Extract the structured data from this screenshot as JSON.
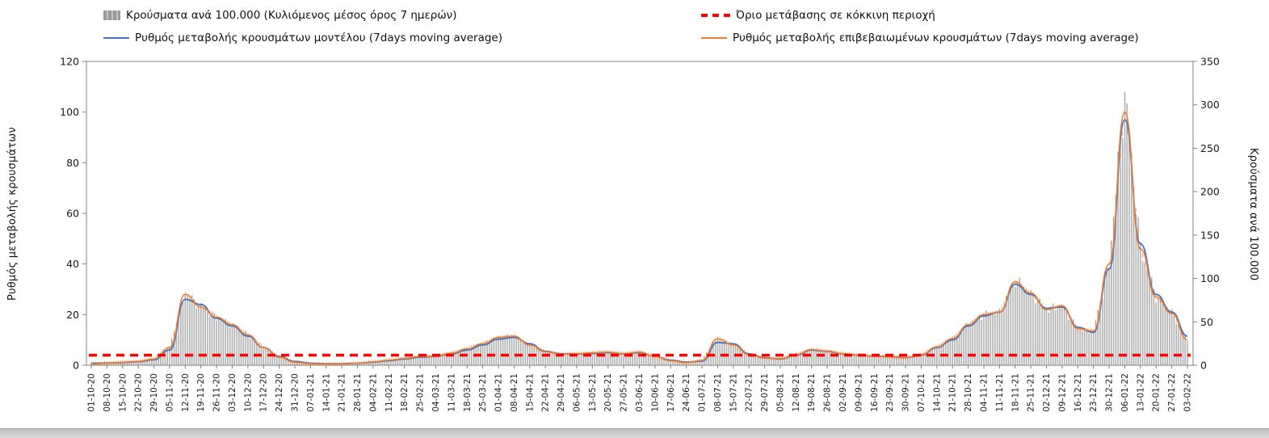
{
  "legend": {
    "items": [
      {
        "label": "Κρούσματα ανά 100.000 (Κυλιόμενος μέσος όρος 7 ημερών)",
        "swatch": "gray-bars"
      },
      {
        "label": "Όριο μετάβασης σε κόκκινη περιοχή",
        "swatch": "red-dashed-line"
      },
      {
        "label": "Ρυθμός μεταβολής κρουσμάτων μοντέλου (7days moving average)",
        "swatch": "blue-line"
      },
      {
        "label": "Ρυθμός μεταβολής επιβεβαιωμένων κρουσμάτων (7days moving average)",
        "swatch": "orange-line"
      }
    ]
  },
  "chart_data": {
    "type": "bar+line",
    "title": "",
    "grid": false,
    "legend_position": "top",
    "x": [
      "01-10-20",
      "08-10-20",
      "15-10-20",
      "22-10-20",
      "29-10-20",
      "05-11-20",
      "12-11-20",
      "19-11-20",
      "26-11-20",
      "03-12-20",
      "10-12-20",
      "17-12-20",
      "24-12-20",
      "31-12-20",
      "07-01-21",
      "14-01-21",
      "21-01-21",
      "28-01-21",
      "04-02-21",
      "11-02-21",
      "18-02-21",
      "25-02-21",
      "04-03-21",
      "11-03-21",
      "18-03-21",
      "25-03-21",
      "01-04-21",
      "08-04-21",
      "15-04-21",
      "22-04-21",
      "29-04-21",
      "06-05-21",
      "13-05-21",
      "20-05-21",
      "27-05-21",
      "03-06-21",
      "10-06-21",
      "17-06-21",
      "24-06-21",
      "01-07-21",
      "08-07-21",
      "15-07-21",
      "22-07-21",
      "29-07-21",
      "05-08-21",
      "12-08-21",
      "19-08-21",
      "26-08-21",
      "02-09-21",
      "09-09-21",
      "16-09-21",
      "23-09-21",
      "30-09-21",
      "07-10-21",
      "14-10-21",
      "21-10-21",
      "28-10-21",
      "04-11-21",
      "11-11-21",
      "18-11-21",
      "25-11-21",
      "02-12-21",
      "09-12-21",
      "16-12-21",
      "23-12-21",
      "30-12-21",
      "06-01-22",
      "13-01-22",
      "20-01-22",
      "27-01-22",
      "03-02-22"
    ],
    "series": [
      {
        "name": "Κρούσματα ανά 100.000 (Κυλιόμενος μέσος όρος 7 ημερών)",
        "type": "bar",
        "axis": "right",
        "color": "#b0b0b0",
        "values": [
          2,
          2,
          4,
          5,
          7,
          20,
          82,
          68,
          55,
          47,
          35,
          20,
          9,
          4,
          2,
          2,
          2,
          2,
          4,
          6,
          8,
          10,
          11,
          14,
          19,
          25,
          32,
          34,
          23,
          16,
          13,
          13,
          14,
          15,
          13,
          15,
          10,
          5,
          3,
          6,
          31,
          23,
          12,
          8,
          8,
          12,
          18,
          16,
          13,
          12,
          11,
          10,
          9,
          12,
          21,
          31,
          47,
          58,
          61,
          97,
          83,
          64,
          69,
          42,
          39,
          117,
          315,
          135,
          79,
          60,
          29
        ]
      },
      {
        "name": "Όριο μετάβασης σε κόκκινη περιοχή",
        "type": "threshold",
        "axis": "left",
        "color": "#ff0000",
        "value": 4
      },
      {
        "name": "Ρυθμός μεταβολής κρουσμάτων μοντέλου (7days moving average)",
        "type": "line",
        "axis": "left",
        "color": "#4472c4",
        "values": [
          0.8,
          0.9,
          1.1,
          1.4,
          2.2,
          6,
          26,
          24,
          18.5,
          15.5,
          11.5,
          7,
          3.5,
          1.5,
          0.8,
          0.6,
          0.6,
          0.8,
          1.2,
          1.8,
          2.5,
          3.2,
          3.5,
          4.5,
          6,
          8,
          10.3,
          11,
          8.5,
          5.5,
          4.5,
          4.5,
          4.7,
          5,
          4.5,
          5,
          3.5,
          2,
          1.2,
          1.6,
          9,
          8.5,
          4.5,
          3,
          2.5,
          4,
          6,
          5.5,
          4.5,
          4,
          3.6,
          3.4,
          3,
          4,
          7,
          10,
          15.5,
          19.5,
          21,
          32,
          28,
          22.5,
          23,
          15,
          13,
          38,
          97,
          48,
          28,
          21,
          11.5
        ]
      },
      {
        "name": "Ρυθμός μεταβολής επιβεβαιωμένων κρουσμάτων (7days moving average)",
        "type": "line",
        "axis": "left",
        "color": "#ed7d31",
        "values": [
          0.5,
          0.8,
          1.2,
          1.5,
          2.5,
          7,
          28,
          23,
          19,
          16,
          12,
          7,
          3.2,
          1.2,
          0.6,
          0.5,
          0.5,
          0.8,
          1.3,
          2,
          2.7,
          3.4,
          3.6,
          4.8,
          6.5,
          8.5,
          11,
          11.5,
          8,
          5.3,
          4.4,
          4.6,
          4.9,
          5.2,
          4.6,
          5.2,
          3.4,
          1.8,
          1,
          1.9,
          10.5,
          8,
          4.2,
          2.8,
          2.6,
          4.2,
          6.2,
          5.6,
          4.6,
          4,
          3.6,
          3.3,
          3,
          4.2,
          7.2,
          10.5,
          16,
          20,
          21,
          33,
          28.5,
          22,
          23.5,
          14.5,
          13.5,
          40,
          100,
          46,
          27,
          20.5,
          10
        ]
      }
    ],
    "left_axis": {
      "label": "Ρυθμός μεταβολής κρουσμάτων",
      "min": 0,
      "max": 120,
      "ticks": [
        0,
        20,
        40,
        60,
        80,
        100,
        120
      ]
    },
    "right_axis": {
      "label": "Κρούσματα ανά 100.000",
      "min": 0,
      "max": 350,
      "ticks": [
        0,
        50,
        100,
        150,
        200,
        250,
        300,
        350
      ]
    }
  }
}
